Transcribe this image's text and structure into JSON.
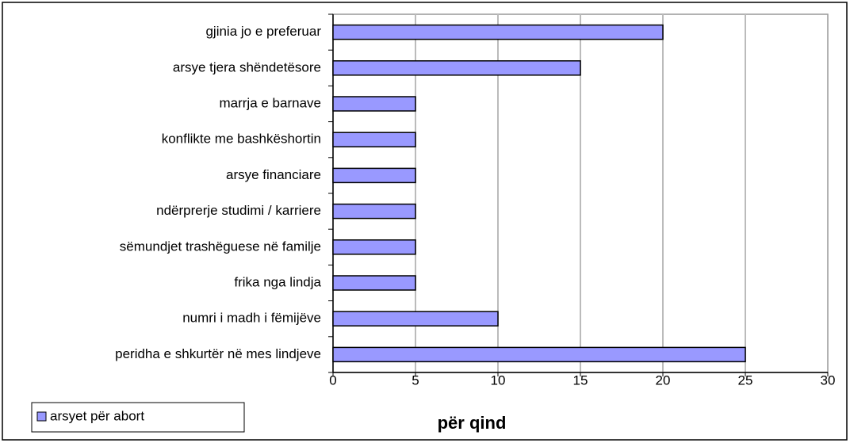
{
  "chart_data": {
    "type": "bar",
    "orientation": "horizontal",
    "x_label": "për qind",
    "categories": [
      "gjinia jo e preferuar",
      "arsye tjera shëndetësore",
      "marrja e barnave",
      "konflikte me bashkëshortin",
      "arsye financiare",
      "ndërprerje studimi / karriere",
      "sëmundjet trashëguese në familje",
      "frika nga lindja",
      "numri i madh i fëmijëve",
      "peridha e shkurtër në mes lindjeve"
    ],
    "series": [
      {
        "name": "arsyet për abort",
        "color": "#9999ff",
        "values": [
          20,
          15,
          5,
          5,
          5,
          5,
          5,
          5,
          10,
          25
        ]
      }
    ],
    "xlim": [
      0,
      30
    ],
    "xticks": [
      0,
      5,
      10,
      15,
      20,
      25,
      30
    ],
    "grid": true,
    "legend": "bottom-left"
  }
}
